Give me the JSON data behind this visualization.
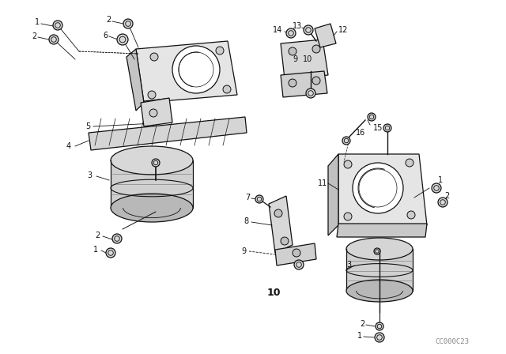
{
  "bg_color": "#ffffff",
  "fig_width": 6.4,
  "fig_height": 4.48,
  "dpi": 100,
  "watermark": "CC000C23",
  "line_color": "#111111",
  "line_width": 0.9,
  "label_fontsize": 7.0,
  "gray_light": "#e0e0e0",
  "gray_mid": "#c8c8c8",
  "gray_dark": "#a8a8a8"
}
